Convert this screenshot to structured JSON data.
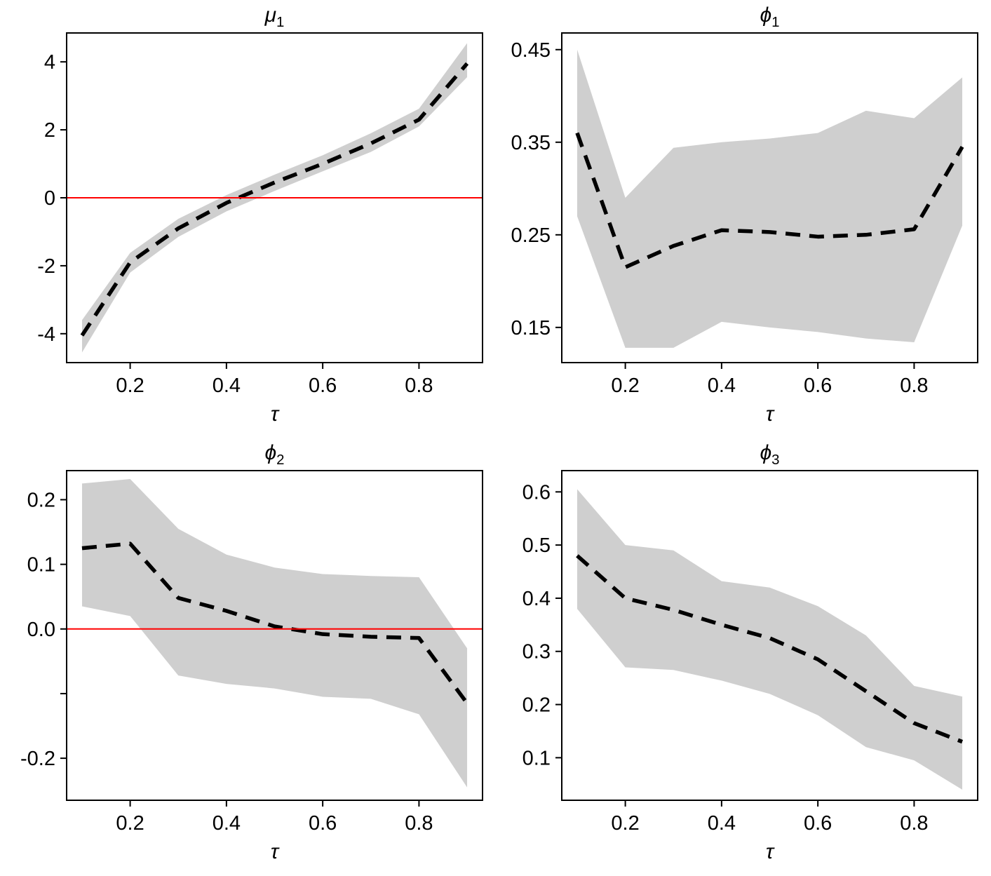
{
  "colors": {
    "band": "#cfcfcf",
    "line": "#000000",
    "refline": "#ff0000",
    "box": "#000000"
  },
  "chart_data": [
    {
      "type": "line",
      "title_main": "μ",
      "title_sub": "1",
      "xlabel": "τ",
      "legend": "dashed = estimate, gray band = confidence interval, red = zero reference",
      "x": [
        0.1,
        0.2,
        0.3,
        0.4,
        0.5,
        0.6,
        0.7,
        0.8,
        0.9
      ],
      "mid": [
        -4.05,
        -1.9,
        -0.9,
        -0.15,
        0.45,
        1.0,
        1.6,
        2.3,
        3.95
      ],
      "lower": [
        -4.55,
        -2.2,
        -1.15,
        -0.4,
        0.2,
        0.78,
        1.35,
        2.1,
        3.55
      ],
      "upper": [
        -3.6,
        -1.62,
        -0.62,
        0.08,
        0.68,
        1.25,
        1.9,
        2.62,
        4.55
      ],
      "hline": 0,
      "xlim": [
        0.068,
        0.932
      ],
      "ylim": [
        -4.85,
        4.85
      ],
      "xticks": [
        0.2,
        0.4,
        0.6,
        0.8
      ],
      "xtick_labels": [
        "0.2",
        "0.4",
        "0.6",
        "0.8"
      ],
      "yticks": [
        -4,
        -2,
        0,
        2,
        4
      ],
      "ytick_labels": [
        "-4",
        "-2",
        "0",
        "2",
        "4"
      ]
    },
    {
      "type": "line",
      "title_main": "ϕ",
      "title_sub": "1",
      "xlabel": "τ",
      "legend": "dashed = estimate, gray band = confidence interval",
      "x": [
        0.1,
        0.2,
        0.3,
        0.4,
        0.5,
        0.6,
        0.7,
        0.8,
        0.9
      ],
      "mid": [
        0.36,
        0.215,
        0.238,
        0.255,
        0.253,
        0.248,
        0.25,
        0.256,
        0.345
      ],
      "lower": [
        0.27,
        0.128,
        0.128,
        0.156,
        0.15,
        0.145,
        0.138,
        0.134,
        0.26
      ],
      "upper": [
        0.45,
        0.29,
        0.344,
        0.35,
        0.354,
        0.36,
        0.384,
        0.376,
        0.42
      ],
      "hline": null,
      "xlim": [
        0.068,
        0.932
      ],
      "ylim": [
        0.112,
        0.468
      ],
      "xticks": [
        0.2,
        0.4,
        0.6,
        0.8
      ],
      "xtick_labels": [
        "0.2",
        "0.4",
        "0.6",
        "0.8"
      ],
      "yticks": [
        0.15,
        0.25,
        0.35,
        0.45
      ],
      "ytick_labels": [
        "0.15",
        "0.25",
        "0.35",
        "0.45"
      ]
    },
    {
      "type": "line",
      "title_main": "ϕ",
      "title_sub": "2",
      "xlabel": "τ",
      "legend": "dashed = estimate, gray band = confidence interval, red = zero reference",
      "x": [
        0.1,
        0.2,
        0.3,
        0.4,
        0.5,
        0.6,
        0.7,
        0.8,
        0.9
      ],
      "mid": [
        0.125,
        0.132,
        0.048,
        0.028,
        0.004,
        -0.008,
        -0.012,
        -0.014,
        -0.115
      ],
      "lower": [
        0.035,
        0.02,
        -0.072,
        -0.085,
        -0.092,
        -0.105,
        -0.108,
        -0.132,
        -0.245
      ],
      "upper": [
        0.225,
        0.232,
        0.155,
        0.115,
        0.095,
        0.085,
        0.082,
        0.08,
        -0.03
      ],
      "hline": 0,
      "xlim": [
        0.068,
        0.932
      ],
      "ylim": [
        -0.265,
        0.245
      ],
      "xticks": [
        0.2,
        0.4,
        0.6,
        0.8
      ],
      "xtick_labels": [
        "0.2",
        "0.4",
        "0.6",
        "0.8"
      ],
      "yticks": [
        -0.2,
        -0.1,
        0,
        0.1,
        0.2
      ],
      "ytick_labels": [
        "-0.2",
        "",
        "0.0",
        "0.1",
        "0.2"
      ]
    },
    {
      "type": "line",
      "title_main": "ϕ",
      "title_sub": "3",
      "xlabel": "τ",
      "legend": "dashed = estimate, gray band = confidence interval",
      "x": [
        0.1,
        0.2,
        0.3,
        0.4,
        0.5,
        0.6,
        0.7,
        0.8,
        0.9
      ],
      "mid": [
        0.48,
        0.4,
        0.378,
        0.35,
        0.325,
        0.285,
        0.225,
        0.165,
        0.13
      ],
      "lower": [
        0.38,
        0.27,
        0.265,
        0.245,
        0.22,
        0.18,
        0.12,
        0.095,
        0.04
      ],
      "upper": [
        0.605,
        0.5,
        0.49,
        0.432,
        0.42,
        0.385,
        0.33,
        0.235,
        0.215
      ],
      "hline": null,
      "xlim": [
        0.068,
        0.932
      ],
      "ylim": [
        0.02,
        0.64
      ],
      "xticks": [
        0.2,
        0.4,
        0.6,
        0.8
      ],
      "xtick_labels": [
        "0.2",
        "0.4",
        "0.6",
        "0.8"
      ],
      "yticks": [
        0.1,
        0.2,
        0.3,
        0.4,
        0.5,
        0.6
      ],
      "ytick_labels": [
        "0.1",
        "0.2",
        "0.3",
        "0.4",
        "0.5",
        "0.6"
      ]
    }
  ]
}
